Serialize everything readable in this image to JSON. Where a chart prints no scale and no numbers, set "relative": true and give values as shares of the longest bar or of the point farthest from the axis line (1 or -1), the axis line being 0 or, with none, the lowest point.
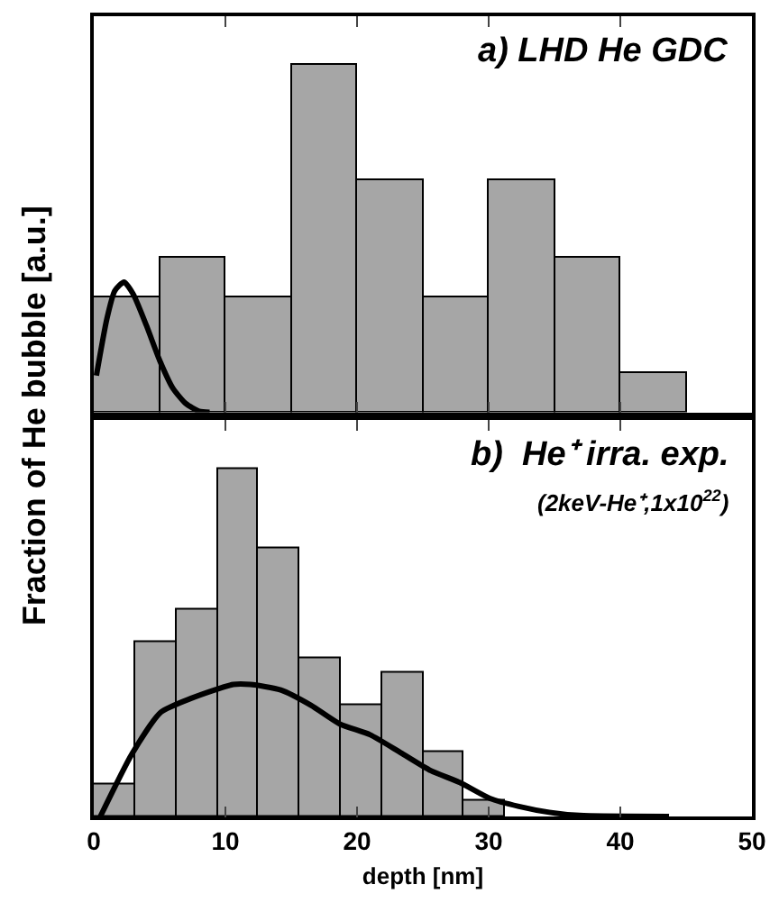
{
  "chart_data": [
    {
      "type": "histogram",
      "title": "a) LHD He GDC",
      "ylabel": "Fraction of He bubble [a.u.]",
      "relative": true,
      "bins": [
        0,
        5,
        10,
        15,
        20,
        25,
        30,
        35,
        40,
        45
      ],
      "values": [
        0.333,
        0.444,
        0.333,
        1,
        0.667,
        0.333,
        0.667,
        0.444,
        0.111
      ],
      "color": "#a6a6a6",
      "xlim": [
        0,
        50
      ],
      "xticks": [
        0,
        10,
        20,
        30,
        40,
        50
      ],
      "tick_labels": false,
      "series": [
        {
          "type": "line",
          "color": "#000000",
          "x": [
            0.2,
            1,
            1.6,
            2.3,
            3,
            4,
            5,
            6,
            7,
            8,
            8.8
          ],
          "values": [
            0.106,
            0.27,
            0.35,
            0.375,
            0.34,
            0.25,
            0.15,
            0.07,
            0.025,
            0.003,
            0
          ]
        }
      ]
    },
    {
      "type": "histogram",
      "title": "b)  He⁺ irra. exp.",
      "subtitle": "(2keV-He⁺,1x10$^{22}$)",
      "xlabel": "depth [nm]",
      "relative": true,
      "bins": [
        0,
        3.1,
        6.3,
        9.4,
        12.5,
        15.6,
        18.8,
        21.9,
        25,
        28.1,
        31.3
      ],
      "values": [
        0.093,
        0.502,
        0.593,
        1,
        0.773,
        0.454,
        0.321,
        0.412,
        0.184,
        0.046
      ],
      "color": "#a6a6a6",
      "xlim": [
        0,
        50
      ],
      "xticks": [
        0,
        10,
        20,
        30,
        40,
        50
      ],
      "tick_labels": "x",
      "series": [
        {
          "type": "line",
          "color": "#000000",
          "x": [
            0.5,
            2.9,
            5.1,
            7.4,
            10.6,
            11.9,
            14.2,
            16.5,
            18.7,
            21,
            23.3,
            25.6,
            27.8,
            30.1,
            32.3,
            34.6,
            36.9,
            43.7
          ],
          "values": [
            0,
            0.18,
            0.3,
            0.34,
            0.38,
            0.38,
            0.364,
            0.32,
            0.266,
            0.235,
            0.184,
            0.132,
            0.098,
            0.052,
            0.029,
            0.012,
            0.003,
            0
          ]
        }
      ]
    }
  ]
}
